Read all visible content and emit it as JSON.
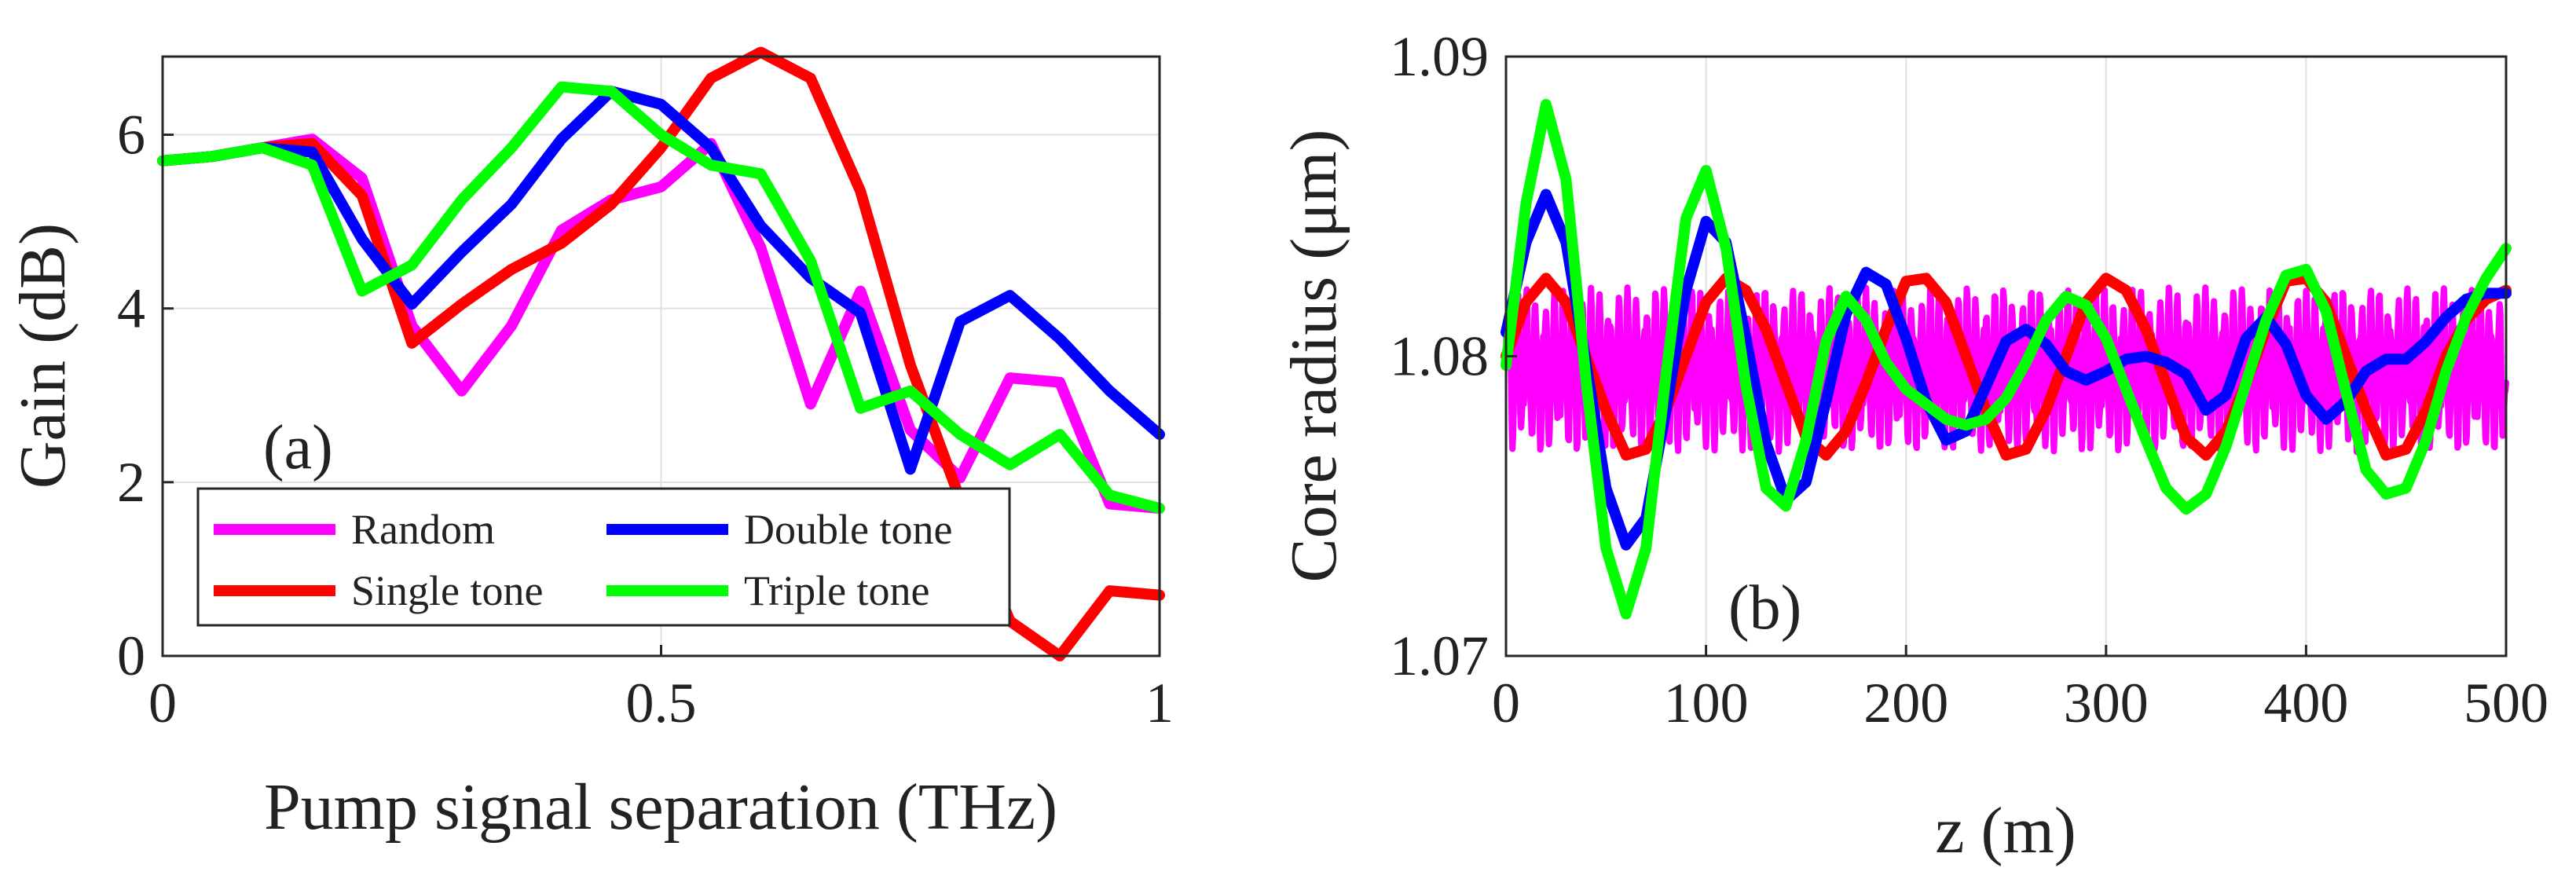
{
  "colors": {
    "Random": "#ff00ff",
    "Single tone": "#ff0000",
    "Double tone": "#0000ff",
    "Triple tone": "#00ff00"
  },
  "chart_data": [
    {
      "type": "line",
      "panel_label": "(a)",
      "xlabel": "Pump signal separation (THz)",
      "ylabel": "Gain  (dB)",
      "xlim": [
        0,
        1
      ],
      "ylim": [
        0,
        6.9
      ],
      "xticks": [
        0,
        0.5,
        1
      ],
      "xtick_labels": [
        "0",
        "0.5",
        "1"
      ],
      "yticks": [
        0,
        2,
        4,
        6
      ],
      "ytick_labels": [
        "0",
        "2",
        "4",
        "6"
      ],
      "grid": true,
      "legend_placement": "bottom-left",
      "legend_order": [
        "Random",
        "Double tone",
        "Single tone",
        "Triple tone"
      ],
      "x": [
        0,
        0.05,
        0.1,
        0.15,
        0.2,
        0.25,
        0.3,
        0.35,
        0.4,
        0.45,
        0.5,
        0.55,
        0.6,
        0.65,
        0.7,
        0.75,
        0.8,
        0.85,
        0.9,
        0.95,
        1.0
      ],
      "series": [
        {
          "name": "Random",
          "values": [
            5.7,
            5.75,
            5.85,
            5.95,
            5.5,
            3.8,
            3.05,
            3.8,
            4.9,
            5.25,
            5.4,
            5.9,
            4.7,
            2.9,
            4.2,
            2.6,
            2.05,
            3.2,
            3.15,
            1.75,
            1.7
          ]
        },
        {
          "name": "Single tone",
          "values": [
            5.7,
            5.75,
            5.85,
            5.9,
            5.3,
            3.6,
            4.05,
            4.45,
            4.75,
            5.2,
            5.85,
            6.65,
            6.95,
            6.65,
            5.35,
            3.35,
            1.8,
            0.4,
            0.0,
            0.75,
            0.7
          ]
        },
        {
          "name": "Double tone",
          "values": [
            5.7,
            5.75,
            5.85,
            5.8,
            4.8,
            4.05,
            4.65,
            5.2,
            5.95,
            6.5,
            6.35,
            5.85,
            4.95,
            4.35,
            3.95,
            2.15,
            3.85,
            4.15,
            3.65,
            3.05,
            2.55
          ]
        },
        {
          "name": "Triple tone",
          "values": [
            5.7,
            5.75,
            5.85,
            5.65,
            4.2,
            4.5,
            5.25,
            5.85,
            6.55,
            6.5,
            6.0,
            5.65,
            5.55,
            4.55,
            2.85,
            3.05,
            2.55,
            2.2,
            2.55,
            1.85,
            1.7
          ]
        }
      ]
    },
    {
      "type": "line",
      "panel_label": "(b)",
      "xlabel": "z  (m)",
      "ylabel": "Core radius  (μm)",
      "xlim": [
        0,
        500
      ],
      "ylim": [
        1.07,
        1.09
      ],
      "xticks": [
        0,
        100,
        200,
        300,
        400,
        500
      ],
      "xtick_labels": [
        "0",
        "100",
        "200",
        "300",
        "400",
        "500"
      ],
      "yticks": [
        1.07,
        1.08,
        1.09
      ],
      "ytick_labels": [
        "1.07",
        "1.08",
        "1.09"
      ],
      "grid": true,
      "x": [
        0,
        10,
        20,
        30,
        40,
        50,
        60,
        70,
        80,
        90,
        100,
        110,
        120,
        130,
        140,
        150,
        160,
        170,
        180,
        190,
        200,
        210,
        220,
        230,
        240,
        250,
        260,
        270,
        280,
        290,
        300,
        310,
        320,
        330,
        340,
        350,
        360,
        370,
        380,
        390,
        400,
        410,
        420,
        430,
        440,
        450,
        460,
        470,
        480,
        490,
        500
      ],
      "series": [
        {
          "name": "Random",
          "noise": true,
          "values": [
            1.0802,
            1.0769,
            1.0823,
            1.0771,
            1.0819,
            1.0768,
            1.0822,
            1.0774,
            1.0818,
            1.0769,
            1.0823,
            1.0772,
            1.082,
            1.0768,
            1.0821,
            1.0775,
            1.0819,
            1.077,
            1.0823,
            1.0769,
            1.0818,
            1.0773,
            1.0822,
            1.0768,
            1.082,
            1.0771,
            1.0823,
            1.0769,
            1.0819,
            1.0774,
            1.0821,
            1.0768,
            1.0822,
            1.077,
            1.0818,
            1.0773,
            1.0823,
            1.0769,
            1.082,
            1.0772,
            1.0821,
            1.0768,
            1.0819,
            1.0774,
            1.0822,
            1.077,
            1.0818,
            1.0771,
            1.0823,
            1.0769,
            1.0821
          ]
        },
        {
          "name": "Single tone",
          "values": [
            1.08,
            1.0818,
            1.0826,
            1.0818,
            1.08,
            1.0782,
            1.0767,
            1.0769,
            1.0782,
            1.08,
            1.0818,
            1.0826,
            1.0822,
            1.0809,
            1.0791,
            1.0773,
            1.0767,
            1.0775,
            1.0791,
            1.0809,
            1.0825,
            1.0826,
            1.0818,
            1.08,
            1.0782,
            1.0767,
            1.0769,
            1.0782,
            1.08,
            1.0818,
            1.0826,
            1.0822,
            1.0809,
            1.0791,
            1.0773,
            1.0767,
            1.0775,
            1.0791,
            1.0809,
            1.0825,
            1.0826,
            1.0818,
            1.08,
            1.0782,
            1.0767,
            1.0769,
            1.0782,
            1.08,
            1.0812,
            1.0819,
            1.0822
          ]
        },
        {
          "name": "Double tone",
          "values": [
            1.0808,
            1.0838,
            1.0854,
            1.0838,
            1.0798,
            1.0756,
            1.0737,
            1.0746,
            1.0782,
            1.0822,
            1.0845,
            1.0838,
            1.0806,
            1.0771,
            1.0752,
            1.0758,
            1.0785,
            1.0814,
            1.0828,
            1.0824,
            1.0806,
            1.0785,
            1.0772,
            1.0775,
            1.079,
            1.0805,
            1.0809,
            1.0804,
            1.0795,
            1.0792,
            1.0795,
            1.0799,
            1.08,
            1.0798,
            1.0794,
            1.0782,
            1.0787,
            1.0806,
            1.0813,
            1.0804,
            1.0787,
            1.0779,
            1.0785,
            1.0795,
            1.0799,
            1.0799,
            1.0805,
            1.0813,
            1.0819,
            1.0821,
            1.0821
          ]
        },
        {
          "name": "Triple tone",
          "values": [
            1.0797,
            1.0851,
            1.0884,
            1.0859,
            1.0792,
            1.0736,
            1.0714,
            1.0736,
            1.0794,
            1.0846,
            1.0862,
            1.0836,
            1.079,
            1.0756,
            1.075,
            1.0772,
            1.0805,
            1.082,
            1.0812,
            1.0798,
            1.0789,
            1.0784,
            1.0779,
            1.0777,
            1.0779,
            1.0786,
            1.0798,
            1.0812,
            1.082,
            1.0817,
            1.0806,
            1.0789,
            1.0772,
            1.0756,
            1.0749,
            1.0754,
            1.077,
            1.0791,
            1.0812,
            1.0827,
            1.0829,
            1.0815,
            1.0788,
            1.0762,
            1.0754,
            1.0756,
            1.0772,
            1.0795,
            1.0813,
            1.0826,
            1.0836
          ]
        }
      ]
    }
  ]
}
